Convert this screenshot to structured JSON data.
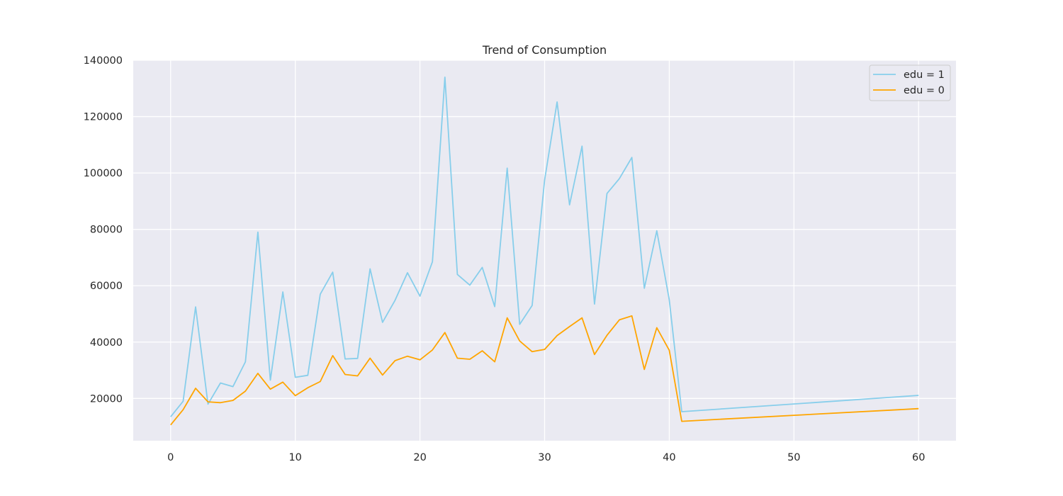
{
  "chart_data": {
    "type": "line",
    "title": "Trend of Consumption",
    "xlabel": "",
    "ylabel": "",
    "xlim": [
      -3,
      63
    ],
    "ylim": [
      5000,
      140000
    ],
    "xticks": [
      0,
      10,
      20,
      30,
      40,
      50,
      60
    ],
    "yticks": [
      20000,
      40000,
      60000,
      80000,
      100000,
      120000,
      140000
    ],
    "grid": true,
    "legend_position": "top-right",
    "colors": {
      "background": "#EAEAF2",
      "grid": "#FFFFFF",
      "edu1": "#87CEEB",
      "edu0": "#FFA500"
    },
    "series": [
      {
        "name": "edu = 1",
        "color": "#87CEEB",
        "x": [
          0,
          1,
          2,
          3,
          4,
          5,
          6,
          7,
          8,
          9,
          10,
          11,
          12,
          13,
          14,
          15,
          16,
          17,
          18,
          19,
          20,
          21,
          22,
          23,
          24,
          25,
          26,
          27,
          28,
          29,
          30,
          31,
          32,
          33,
          34,
          35,
          36,
          37,
          38,
          39,
          40,
          41,
          60
        ],
        "y": [
          13500,
          19000,
          52500,
          18000,
          25500,
          24200,
          33000,
          79000,
          26500,
          57800,
          27500,
          28200,
          57000,
          64800,
          34000,
          34200,
          66000,
          47000,
          54800,
          64600,
          56300,
          68500,
          134000,
          64000,
          60200,
          66500,
          52600,
          101700,
          46300,
          53000,
          97500,
          125200,
          88700,
          109500,
          53500,
          92700,
          98000,
          105500,
          59100,
          79500,
          55000,
          15300,
          21100
        ]
      },
      {
        "name": "edu = 0",
        "color": "#FFA500",
        "x": [
          0,
          1,
          2,
          3,
          4,
          5,
          6,
          7,
          8,
          9,
          10,
          11,
          12,
          13,
          14,
          15,
          16,
          17,
          18,
          19,
          20,
          21,
          22,
          23,
          24,
          25,
          26,
          27,
          28,
          29,
          30,
          31,
          32,
          33,
          34,
          35,
          36,
          37,
          38,
          39,
          40,
          41,
          60
        ],
        "y": [
          10600,
          16000,
          23600,
          18800,
          18500,
          19300,
          22600,
          28900,
          23300,
          25800,
          21000,
          23800,
          26000,
          35200,
          28500,
          28000,
          34300,
          28300,
          33400,
          35000,
          33700,
          37200,
          43400,
          34300,
          33900,
          36900,
          33000,
          48600,
          40400,
          36600,
          37400,
          42300,
          45500,
          48600,
          35600,
          42400,
          47900,
          49300,
          30300,
          45100,
          37100,
          11900,
          16400
        ]
      }
    ]
  }
}
